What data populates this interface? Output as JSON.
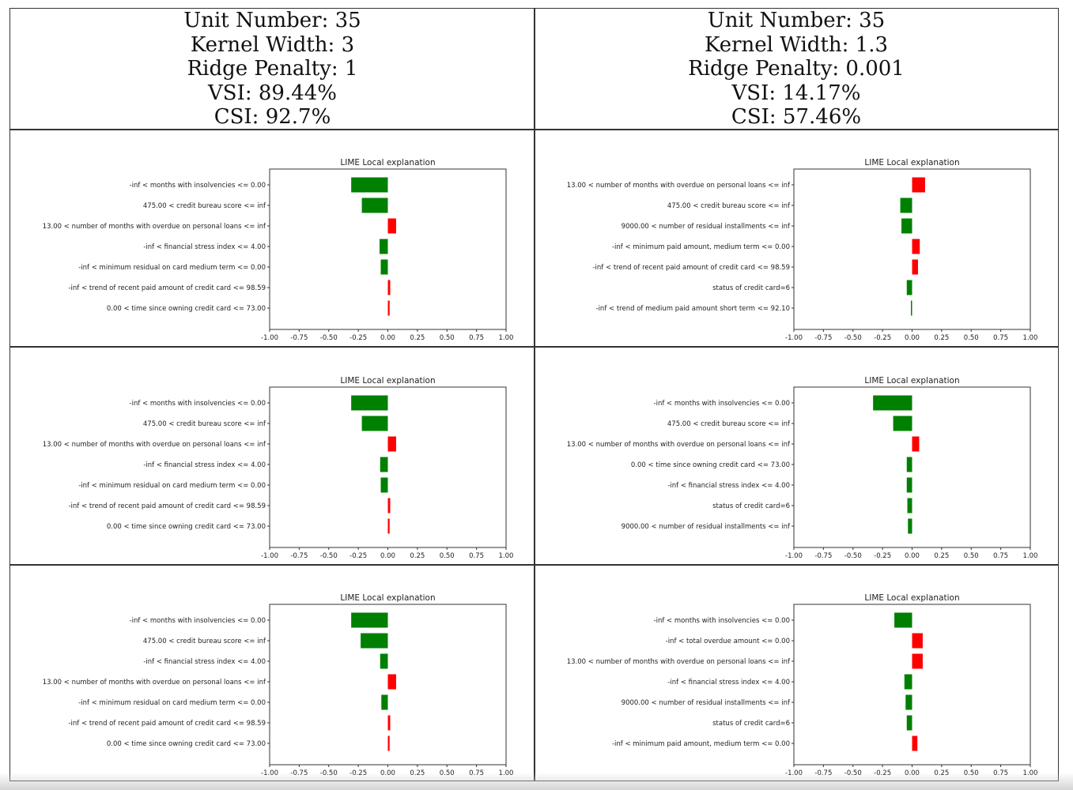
{
  "headers": [
    {
      "unit": "Unit Number: 35",
      "kernel": "Kernel Width: 3",
      "ridge": "Ridge Penalty: 1",
      "vsi": "VSI: 89.44%",
      "csi": "CSI: 92.7%"
    },
    {
      "unit": "Unit Number: 35",
      "kernel": "Kernel Width: 1.3",
      "ridge": "Ridge Penalty: 0.001",
      "vsi": "VSI: 14.17%",
      "csi": "CSI: 57.46%"
    }
  ],
  "colors": {
    "positive": "#ff0000",
    "negative": "#008000"
  },
  "xticks": [
    "-1.00",
    "-0.75",
    "-0.50",
    "-0.25",
    "0.00",
    "0.25",
    "0.50",
    "0.75",
    "1.00"
  ],
  "chart_data": [
    {
      "type": "bar",
      "orientation": "horizontal",
      "title": "LIME Local explanation",
      "xlim": [
        -1,
        1
      ],
      "categories": [
        "-inf < months with insolvencies <= 0.00",
        "475.00 < credit bureau score <= inf",
        "13.00 < number of months with overdue on personal loans <= inf",
        "-inf < financial stress index <= 4.00",
        "-inf < minimum residual on card medium term <= 0.00",
        "-inf < trend of recent paid amount of credit card <= 98.59",
        "0.00 < time since owning credit card <= 73.00"
      ],
      "values": [
        -0.31,
        -0.22,
        0.07,
        -0.07,
        -0.06,
        0.02,
        0.015
      ]
    },
    {
      "type": "bar",
      "orientation": "horizontal",
      "title": "LIME Local explanation",
      "xlim": [
        -1,
        1
      ],
      "categories": [
        "13.00 < number of months with overdue on personal loans <= inf",
        "475.00 < credit bureau score <= inf",
        "9000.00 < number of residual installments <= inf",
        "-inf < minimum paid amount, medium term <= 0.00",
        "-inf < trend of recent paid amount of credit card <= 98.59",
        "status of credit card=6",
        "-inf < trend of medium paid amount short term <= 92.10"
      ],
      "values": [
        0.11,
        -0.1,
        -0.09,
        0.065,
        0.05,
        -0.045,
        -0.01
      ]
    },
    {
      "type": "bar",
      "orientation": "horizontal",
      "title": "LIME Local explanation",
      "xlim": [
        -1,
        1
      ],
      "categories": [
        "-inf < months with insolvencies <= 0.00",
        "475.00 < credit bureau score <= inf",
        "13.00 < number of months with overdue on personal loans <= inf",
        "-inf < financial stress index <= 4.00",
        "-inf < minimum residual on card medium term <= 0.00",
        "-inf < trend of recent paid amount of credit card <= 98.59",
        "0.00 < time since owning credit card <= 73.00"
      ],
      "values": [
        -0.31,
        -0.22,
        0.07,
        -0.065,
        -0.06,
        0.02,
        0.015
      ]
    },
    {
      "type": "bar",
      "orientation": "horizontal",
      "title": "LIME Local explanation",
      "xlim": [
        -1,
        1
      ],
      "categories": [
        "-inf < months with insolvencies <= 0.00",
        "475.00 < credit bureau score <= inf",
        "13.00 < number of months with overdue on personal loans <= inf",
        "0.00 < time since owning credit card <= 73.00",
        "-inf < financial stress index <= 4.00",
        "status of credit card=6",
        "9000.00 < number of residual installments <= inf"
      ],
      "values": [
        -0.33,
        -0.16,
        0.06,
        -0.045,
        -0.045,
        -0.04,
        -0.035
      ]
    },
    {
      "type": "bar",
      "orientation": "horizontal",
      "title": "LIME Local explanation",
      "xlim": [
        -1,
        1
      ],
      "categories": [
        "-inf < months with insolvencies <= 0.00",
        "475.00 < credit bureau score <= inf",
        "-inf < financial stress index <= 4.00",
        "13.00 < number of months with overdue on personal loans <= inf",
        "-inf < minimum residual on card medium term <= 0.00",
        "-inf < trend of recent paid amount of credit card <= 98.59",
        "0.00 < time since owning credit card <= 73.00"
      ],
      "values": [
        -0.31,
        -0.23,
        -0.065,
        0.07,
        -0.055,
        0.02,
        0.015
      ]
    },
    {
      "type": "bar",
      "orientation": "horizontal",
      "title": "LIME Local explanation",
      "xlim": [
        -1,
        1
      ],
      "categories": [
        "-inf < months with insolvencies <= 0.00",
        "-inf < total overdue amount <= 0.00",
        "13.00 < number of months with overdue on personal loans <= inf",
        "-inf < financial stress index <= 4.00",
        "9000.00 < number of residual installments <= inf",
        "status of credit card=6",
        "-inf < minimum paid amount, medium term <= 0.00"
      ],
      "values": [
        -0.15,
        0.09,
        0.09,
        -0.065,
        -0.055,
        -0.045,
        0.045
      ]
    }
  ]
}
